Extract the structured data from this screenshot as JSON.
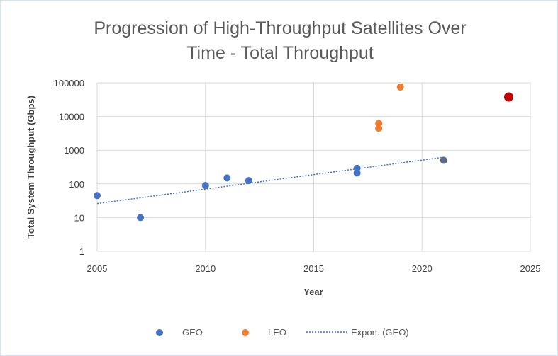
{
  "chart_data": {
    "type": "scatter",
    "title": [
      "Progression of High-Throughput Satellites Over",
      "Time - Total Throughput"
    ],
    "xlabel": "Year",
    "ylabel": "Total System Throughput  (Gbps)",
    "xlim": [
      2005,
      2025
    ],
    "ylim": [
      1,
      100000
    ],
    "yscale": "log",
    "xticks": [
      "2005",
      "2010",
      "2015",
      "2020",
      "2025"
    ],
    "yticks": [
      "1",
      "10",
      "100",
      "1000",
      "10000",
      "100000"
    ],
    "grid": true,
    "legend_position": "bottom",
    "colors": {
      "GEO": "#4472c4",
      "LEO": "#ed7d31",
      "highlight": "#c00000",
      "geo_latest": "#5a6b8c",
      "trend": "#4472c4"
    },
    "series": [
      {
        "name": "GEO",
        "points": [
          [
            2005,
            45
          ],
          [
            2007,
            10
          ],
          [
            2010,
            90
          ],
          [
            2011,
            150
          ],
          [
            2012,
            125
          ],
          [
            2017,
            290
          ],
          [
            2017,
            210
          ],
          [
            2021,
            500
          ]
        ]
      },
      {
        "name": "LEO",
        "points": [
          [
            2018,
            6200
          ],
          [
            2018,
            4500
          ],
          [
            2019,
            75000
          ],
          [
            2024,
            38000
          ]
        ]
      }
    ],
    "trendline": {
      "name": "Expon. (GEO)",
      "from": [
        2005,
        26
      ],
      "to": [
        2021,
        620
      ]
    },
    "legend": [
      "GEO",
      "LEO",
      "Expon. (GEO)"
    ]
  }
}
